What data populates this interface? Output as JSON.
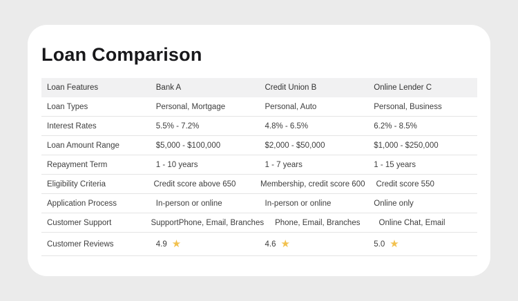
{
  "page": {
    "title": "Loan Comparison"
  },
  "colors": {
    "page_background": "#EBEBEB",
    "card_background": "#FFFFFF",
    "header_background": "#F1F1F2",
    "divider": "#E4E4E4",
    "title_text": "#18181B",
    "body_text": "#3D3D3D",
    "star": "#F2C14E"
  },
  "table": {
    "star_char": "★",
    "columns": [
      "Loan Features",
      "Bank A",
      "Credit Union B",
      "Online Lender C"
    ],
    "rows": [
      {
        "feature": "Loan Types",
        "values": [
          "Personal, Mortgage",
          "Personal, Auto",
          "Personal, Business"
        ]
      },
      {
        "feature": "Interest Rates",
        "values": [
          "5.5% - 7.2%",
          "4.8% - 6.5%",
          "6.2% - 8.5%"
        ]
      },
      {
        "feature": "Loan Amount Range",
        "values": [
          "$5,000 - $100,000",
          "$2,000 - $50,000",
          "$1,000 - $250,000"
        ]
      },
      {
        "feature": "Repayment Term",
        "values": [
          "1 - 10 years",
          "1 - 7 years",
          "1 - 15 years"
        ]
      },
      {
        "feature": "Eligibility Criteria",
        "values": [
          "Credit score above 650",
          "Membership, credit score 600",
          "Credit score 550"
        ]
      },
      {
        "feature": "Application Process",
        "values": [
          "In-person or online",
          "In-person or online",
          "Online only"
        ]
      },
      {
        "feature": "Customer Support",
        "values": [
          "SupportPhone, Email, Branches",
          "Phone, Email, Branches",
          "Online Chat, Email"
        ]
      },
      {
        "feature": "Customer Reviews",
        "type": "rating",
        "values": [
          "4.9",
          "4.6",
          "5.0"
        ]
      }
    ]
  }
}
